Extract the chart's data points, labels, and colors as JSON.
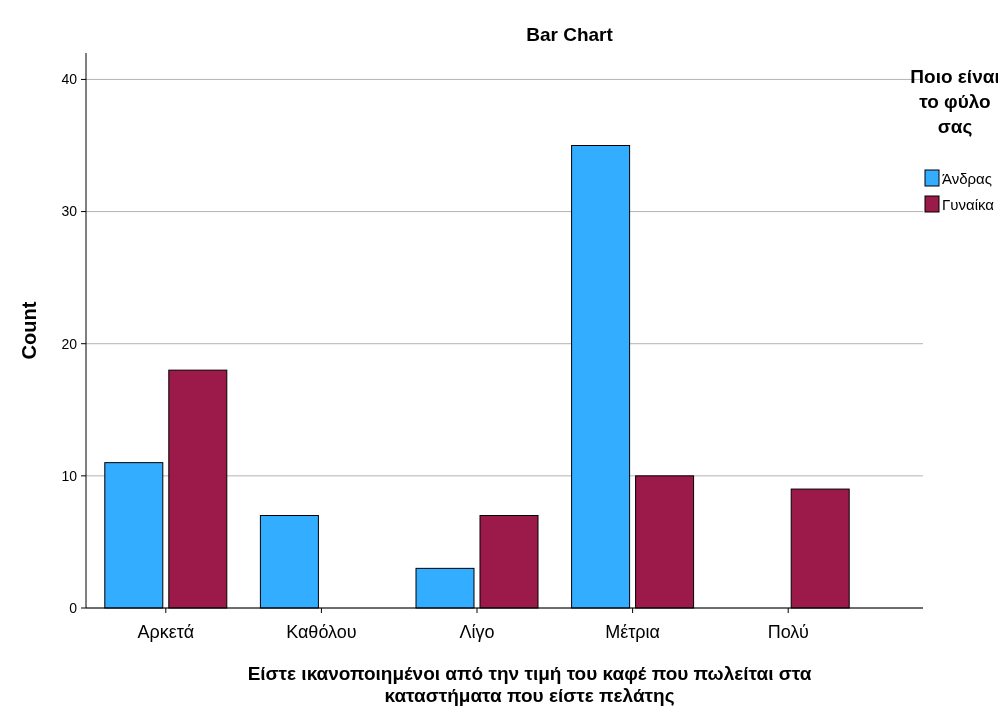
{
  "chart_data": {
    "type": "bar",
    "title": "Bar Chart",
    "xlabel": "Είστε ικανοποιημένοι από την τιμή του καφέ που πωλείται στα καταστήματα που είστε πελάτης",
    "ylabel": "Count",
    "legend_title": "Ποιο είναι το φύλο σας",
    "categories": [
      "Αρκετά",
      "Καθόλου",
      "Λίγο",
      "Μέτρια",
      "Πολύ"
    ],
    "series": [
      {
        "name": "Άνδρας",
        "color": "#33adff",
        "values": [
          11,
          7,
          3,
          35,
          null
        ]
      },
      {
        "name": "Γυναίκα",
        "color": "#9c1a4a",
        "values": [
          18,
          null,
          7,
          10,
          9
        ]
      }
    ],
    "ylim": [
      0,
      42
    ],
    "yticks": [
      0,
      10,
      20,
      30,
      40
    ],
    "grid": "y",
    "legend": "top right"
  }
}
